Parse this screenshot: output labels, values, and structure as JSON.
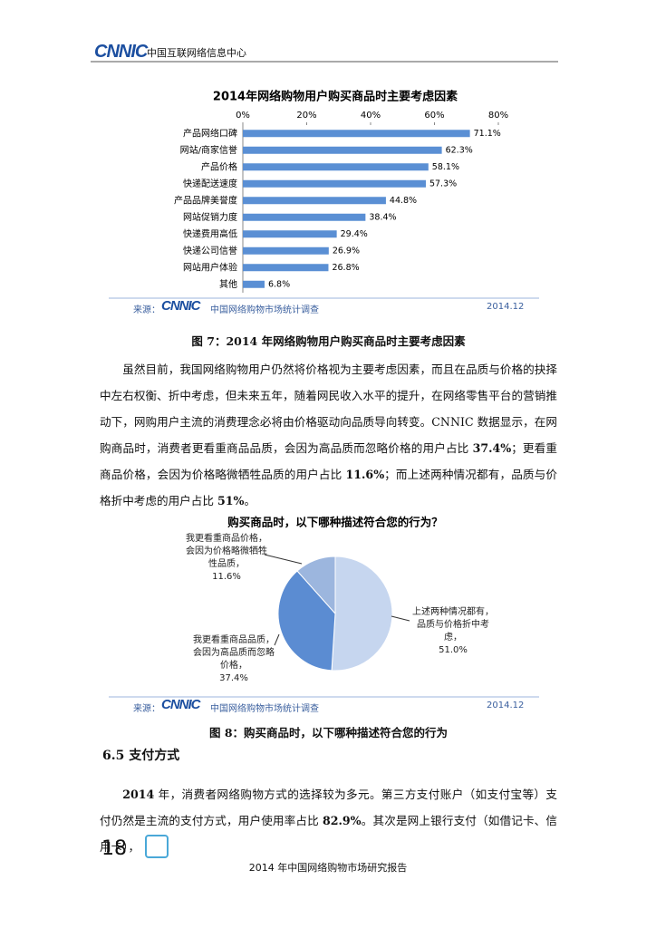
{
  "header": {
    "logo": "CNNIC",
    "org": "中国互联网络信息中心"
  },
  "chart_data": [
    {
      "type": "hbar",
      "title": "2014年网络购物用户购买商品时主要考虑因素",
      "categories": [
        "产品网络口碑",
        "网站/商家信誉",
        "产品价格",
        "快递配送速度",
        "产品品牌美誉度",
        "网站促销力度",
        "快递费用高低",
        "快递公司信誉",
        "网站用户体验",
        "其他"
      ],
      "values": [
        71.1,
        62.3,
        58.1,
        57.3,
        44.8,
        38.4,
        29.4,
        26.9,
        26.8,
        6.8
      ],
      "value_labels": [
        "71.1%",
        "62.3%",
        "58.1%",
        "57.3%",
        "44.8%",
        "38.4%",
        "29.4%",
        "26.9%",
        "26.8%",
        "6.8%"
      ],
      "color": "#5a8fd4",
      "xlim": [
        0,
        80
      ],
      "xticks": [
        {
          "value": 0,
          "label": "0%"
        },
        {
          "value": 20,
          "label": "20%"
        },
        {
          "value": 40,
          "label": "40%"
        },
        {
          "value": 60,
          "label": "60%"
        },
        {
          "value": 80,
          "label": "80%"
        }
      ],
      "source_prefix": "来源：",
      "source_logo": "CNNIC",
      "source": "中国网络购物市场统计调查",
      "date": "2014.12"
    },
    {
      "type": "pie",
      "title": "购买商品时，以下哪种描述符合您的行为？",
      "categories": [
        "上述两种情况都有，品质与价格折中考虑，",
        "我更看重商品品质，会因为高品质而忽略价格，",
        "我更看重商品价格，会因为价格略微牺牲性品质，"
      ],
      "values": [
        51.0,
        37.4,
        11.6
      ],
      "value_labels": [
        "51.0%",
        "37.4%",
        "11.6%"
      ],
      "colors": [
        "#c6d6ef",
        "#5b8cd2",
        "#9cb6de"
      ],
      "source_prefix": "来源：",
      "source_logo": "CNNIC",
      "source": "中国网络购物市场统计调查",
      "date": "2014.12"
    }
  ],
  "captions": [
    "图 7：2014 年网络购物用户购买商品时主要考虑因素",
    "图 8：购买商品时，以下哪种描述符合您的行为"
  ],
  "paragraphs": [
    [
      "虽然目前，我国网络购物用户仍然将价格视为主要考虑因素，而且在品质与价格的抉择中左右权衡、折中考虑，但未来五年，随着网民收入水平的提升，在网络零售平台的营销推动下，网购用户主流的消费理念必将由价格驱动向品质导向转变。CNNIC 数据显示，在网购商品时，消费者更看重商品品质，会因为高品质而忽略价格的用户占比 ",
      "37.4%",
      "；更看重商品价格，会因为价格略微牺牲品质的用户占比 ",
      "11.6%",
      "；而上述两种情况都有，品质与价格折中考虑的用户占比 ",
      "51%",
      "。"
    ],
    [
      "",
      "2014",
      " 年，消费者网络购物方式的选择较为多元。第三方支付账户（如支付宝等）支付仍然是主流的支付方式，用户使用率占比 ",
      "82.9%",
      "。其次是网上银行支付（如借记卡、信用卡），"
    ]
  ],
  "section": "6.5  支付方式",
  "footer": {
    "page": "18",
    "title": "2014 年中国网络购物市场研究报告"
  }
}
